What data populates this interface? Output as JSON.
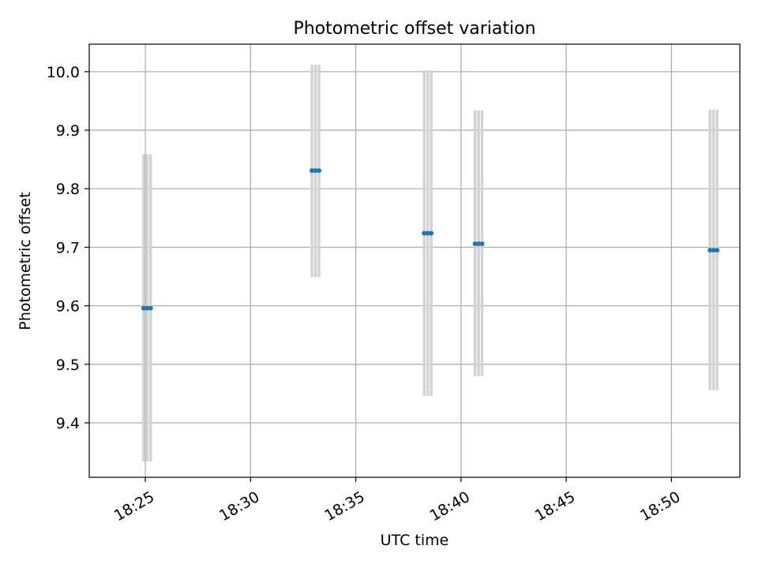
{
  "chart_data": {
    "type": "scatter",
    "title": "Photometric offset variation",
    "xlabel": "UTC time",
    "ylabel": "Photometric offset",
    "xlim": [
      "18:22:20",
      "18:53:15"
    ],
    "ylim": [
      9.307,
      10.047
    ],
    "x_ticks": [
      "18:25",
      "18:30",
      "18:35",
      "18:40",
      "18:45",
      "18:50"
    ],
    "y_ticks": [
      "9.4",
      "9.5",
      "9.6",
      "9.7",
      "9.8",
      "9.9",
      "10.0"
    ],
    "grid": true,
    "points": [
      {
        "times": [
          "18:24:55",
          "18:25:05",
          "18:25:15"
        ],
        "value": 9.596,
        "lower": 9.334,
        "upper": 9.859
      },
      {
        "times": [
          "18:32:55",
          "18:33:05",
          "18:33:15"
        ],
        "value": 9.831,
        "lower": 9.649,
        "upper": 10.012
      },
      {
        "times": [
          "18:38:15",
          "18:38:25",
          "18:38:35"
        ],
        "value": 9.724,
        "lower": 9.446,
        "upper": 10.002
      },
      {
        "times": [
          "18:40:40",
          "18:40:50",
          "18:41:00"
        ],
        "value": 9.706,
        "lower": 9.48,
        "upper": 9.934
      },
      {
        "times": [
          "18:51:50",
          "18:52:00",
          "18:52:10"
        ],
        "value": 9.695,
        "lower": 9.456,
        "upper": 9.935
      }
    ],
    "colors": {
      "points": "#1f77b4",
      "errorbars": "#d3d3d3",
      "grid": "#b0b0b0",
      "axes": "#000000"
    }
  }
}
